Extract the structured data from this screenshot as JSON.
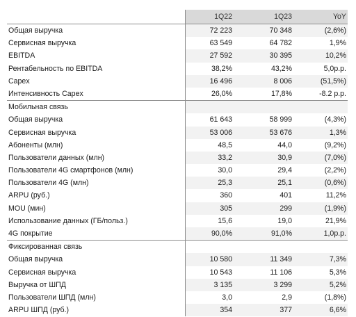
{
  "header": {
    "col1": "1Q22",
    "col2": "1Q23",
    "col3": "YoY"
  },
  "sections": [
    {
      "title": "",
      "rows": [
        [
          "Общая выручка",
          "72 223",
          "70 348",
          "(2,6%)"
        ],
        [
          "Сервисная выручка",
          "63 549",
          "64 782",
          "1,9%"
        ],
        [
          "EBITDA",
          "27 592",
          "30 395",
          "10,2%"
        ],
        [
          "Рентабельность по EBITDA",
          "38,2%",
          "43,2%",
          "5,0p.p."
        ],
        [
          "Capex",
          "16 496",
          "8 006",
          "(51,5%)"
        ],
        [
          "Интенсивность Capex",
          "26,0%",
          "17,8%",
          "-8.2 p.p."
        ]
      ]
    },
    {
      "title": "Мобильная связь",
      "rows": [
        [
          "Общая выручка",
          "61 643",
          "58 999",
          "(4,3%)"
        ],
        [
          "Сервисная выручка",
          "53 006",
          "53 676",
          "1,3%"
        ],
        [
          "Абоненты (млн)",
          "48,5",
          "44,0",
          "(9,2%)"
        ],
        [
          "Пользователи данных (млн)",
          "33,2",
          "30,9",
          "(7,0%)"
        ],
        [
          "Пользователи 4G смартфонов (млн)",
          "30,0",
          "29,4",
          "(2,2%)"
        ],
        [
          "Пользователи 4G (млн)",
          "25,3",
          "25,1",
          "(0,6%)"
        ],
        [
          "ARPU (руб.)",
          "360",
          "401",
          "11,2%"
        ],
        [
          "MOU (мин)",
          "305",
          "299",
          "(1,9%)"
        ],
        [
          "Использование данных (ГБ/польз.)",
          "15,6",
          "19,0",
          "21,9%"
        ],
        [
          "4G покрытие",
          "90,0%",
          "91,0%",
          "1,0p.p."
        ]
      ]
    },
    {
      "title": "Фиксированная связь",
      "rows": [
        [
          "Общая выручка",
          "10 580",
          "11 349",
          "7,3%"
        ],
        [
          "Сервисная выручка",
          "10 543",
          "11 106",
          "5,3%"
        ],
        [
          "Выручка от ШПД",
          "3 135",
          "3 299",
          "5,2%"
        ],
        [
          "Пользователи ШПД (млн)",
          "3,0",
          "2,9",
          "(1,8%)"
        ],
        [
          "ARPU ШПД (руб.)",
          "354",
          "377",
          "6,6%"
        ]
      ]
    }
  ]
}
